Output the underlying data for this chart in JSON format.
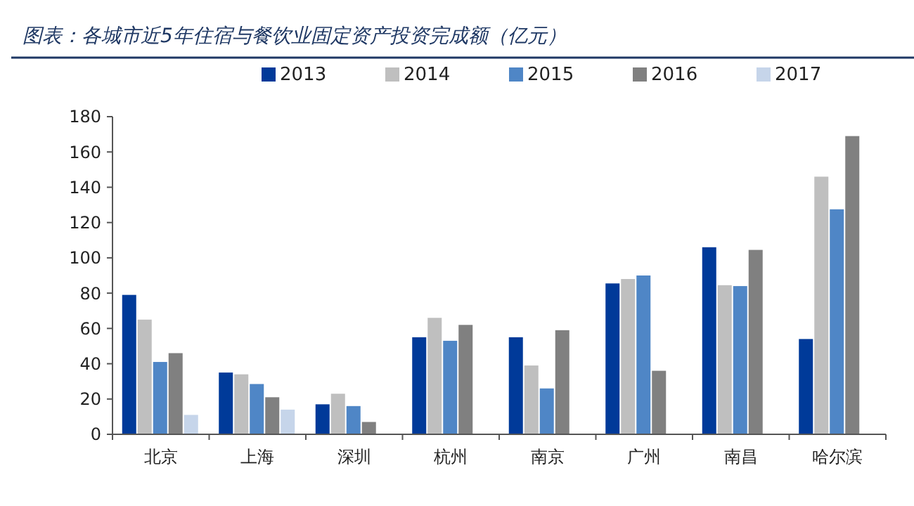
{
  "chart_data": {
    "type": "bar",
    "title": "图表：各城市近5年住宿与餐饮业固定资产投资完成额（亿元）",
    "categories": [
      "北京",
      "上海",
      "深圳",
      "杭州",
      "南京",
      "广州",
      "南昌",
      "哈尔滨"
    ],
    "series": [
      {
        "name": "2013",
        "color": "#003a99",
        "values": [
          79,
          35,
          17,
          55,
          55,
          85.5,
          106,
          54
        ]
      },
      {
        "name": "2014",
        "color": "#bfbfbf",
        "values": [
          65,
          34,
          23,
          66,
          39,
          88,
          84.5,
          146
        ]
      },
      {
        "name": "2015",
        "color": "#4f86c6",
        "values": [
          41,
          28.5,
          16,
          53,
          26,
          90,
          84,
          127.5
        ]
      },
      {
        "name": "2016",
        "color": "#808080",
        "values": [
          46,
          21,
          7,
          62,
          59,
          36,
          104.5,
          169
        ]
      },
      {
        "name": "2017",
        "color": "#c6d5ea",
        "values": [
          11,
          14,
          null,
          null,
          null,
          null,
          null,
          null
        ]
      }
    ],
    "ylim": [
      0,
      180
    ],
    "yticks": [
      0,
      20,
      40,
      60,
      80,
      100,
      120,
      140,
      160,
      180
    ],
    "grid": false,
    "legend": "top"
  }
}
